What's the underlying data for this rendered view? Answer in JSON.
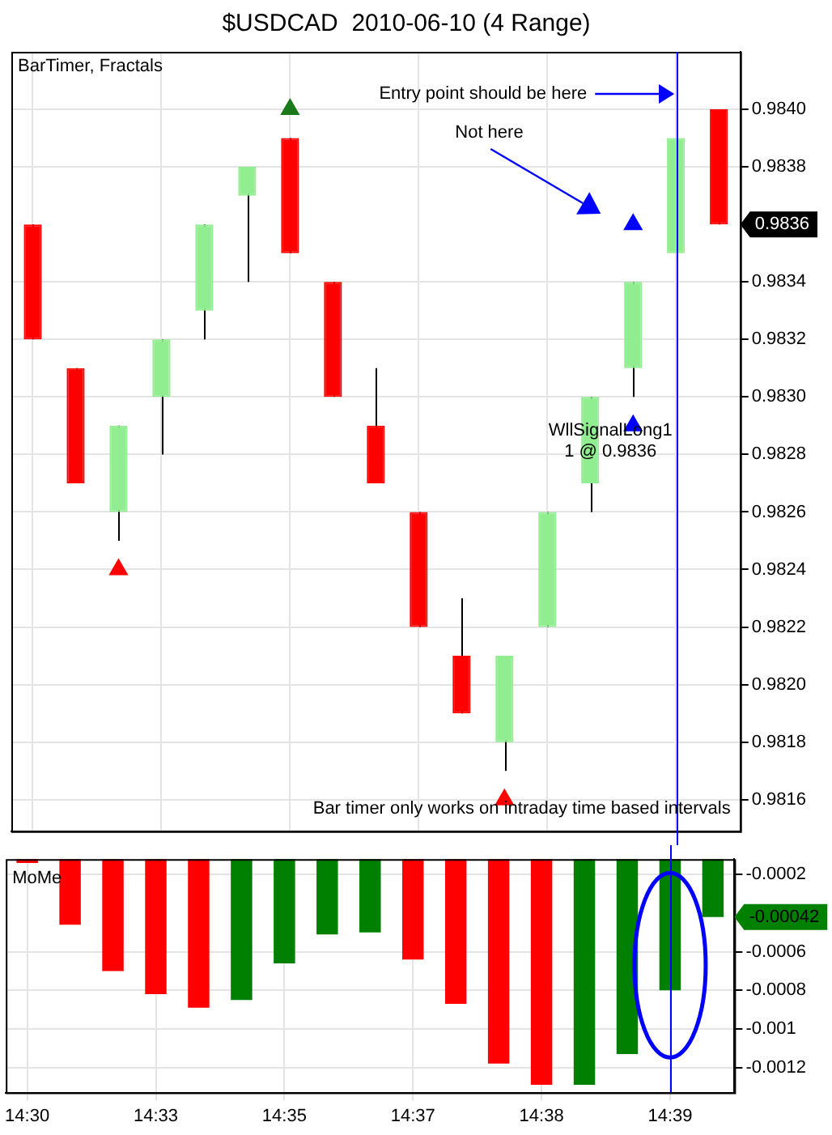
{
  "chart_data": [
    {
      "type": "candlestick",
      "title": "$USDCAD  2010-06-10 (4 Range)",
      "tick_labels": "y",
      "grid": true,
      "legend": false,
      "categories": [
        "14:30",
        null,
        null,
        "14:33",
        null,
        null,
        "14:35",
        null,
        null,
        "14:37",
        null,
        null,
        "14:38",
        null,
        null,
        "14:39",
        null
      ],
      "ohlc": [
        [
          0.9836,
          0.9836,
          0.9832,
          0.9832
        ],
        [
          0.9831,
          0.9831,
          0.9827,
          0.9827
        ],
        [
          0.9826,
          0.9829,
          0.9825,
          0.9829
        ],
        [
          0.983,
          0.9832,
          0.9828,
          0.9832
        ],
        [
          0.9833,
          0.9836,
          0.9832,
          0.9836
        ],
        [
          0.9837,
          0.9838,
          0.9834,
          0.9838
        ],
        [
          0.9839,
          0.9839,
          0.9835,
          0.9835
        ],
        [
          0.9834,
          0.9834,
          0.983,
          0.983
        ],
        [
          0.9829,
          0.9831,
          0.9827,
          0.9827
        ],
        [
          0.9826,
          0.9826,
          0.9822,
          0.9822
        ],
        [
          0.9821,
          0.9823,
          0.9819,
          0.9819
        ],
        [
          0.9818,
          0.9821,
          0.9817,
          0.9821
        ],
        [
          0.9822,
          0.9826,
          0.9822,
          0.9826
        ],
        [
          0.9827,
          0.983,
          0.9826,
          0.983
        ],
        [
          0.9831,
          0.9834,
          0.983,
          0.9834
        ],
        [
          0.9835,
          0.9839,
          0.9835,
          0.9839
        ],
        [
          0.984,
          0.984,
          0.9836,
          0.9836
        ]
      ],
      "colors": [
        "#ff0000",
        "#ff0000",
        "#90ee90",
        "#90ee90",
        "#90ee90",
        "#90ee90",
        "#ff0000",
        "#ff0000",
        "#ff0000",
        "#ff0000",
        "#ff0000",
        "#90ee90",
        "#90ee90",
        "#90ee90",
        "#90ee90",
        "#90ee90",
        "#ff0000"
      ],
      "series": [
        {
          "type": "scatter",
          "color": "#1a7a1a",
          "marker": "triangle",
          "values": [
            null,
            null,
            null,
            null,
            null,
            null,
            0.984,
            null,
            null,
            null,
            null,
            null,
            null,
            null,
            null,
            null,
            null
          ]
        },
        {
          "type": "scatter",
          "color": "#ff0000",
          "marker": "triangle",
          "values": [
            null,
            null,
            0.9824,
            null,
            null,
            null,
            null,
            null,
            null,
            null,
            null,
            0.9816,
            null,
            null,
            null,
            null,
            null
          ]
        },
        {
          "type": "scatter",
          "color": "#0000ff",
          "marker": "triangle",
          "values": [
            null,
            null,
            null,
            null,
            null,
            null,
            null,
            null,
            null,
            null,
            null,
            null,
            null,
            null,
            0.9829,
            null,
            null
          ]
        },
        {
          "type": "scatter",
          "color": "#0000ff",
          "marker": "triangle",
          "values": [
            null,
            null,
            null,
            null,
            null,
            null,
            null,
            null,
            null,
            null,
            null,
            null,
            null,
            null,
            0.9836,
            null,
            null
          ]
        }
      ],
      "ylim": [
        0.98149,
        0.9842
      ],
      "yticks": [
        0.9816,
        0.9818,
        {
          "value": 0.982,
          "label": "0.9820"
        },
        0.9822,
        0.9824,
        0.9826,
        0.9828,
        {
          "value": 0.983,
          "label": "0.9830"
        },
        0.9832,
        0.9834,
        0.9838,
        {
          "value": 0.984,
          "label": "0.9840"
        }
      ],
      "ref_lines": [
        {
          "axis": "x",
          "value": "14:39",
          "color": "#0000ff"
        }
      ],
      "annotations": [
        "BarTimer, Fractals",
        "Entry point should be here",
        "Not here",
        "WllSignalLong1\n1 @ 0.9836",
        "Bar timer only works on intraday time based intervals",
        "0.9836"
      ]
    },
    {
      "type": "bar",
      "grid": true,
      "legend": false,
      "categories": [
        "14:30",
        null,
        null,
        "14:33",
        null,
        null,
        "14:35",
        null,
        null,
        "14:37",
        null,
        null,
        "14:38",
        null,
        null,
        "14:39",
        null
      ],
      "values": [
        -0.00014,
        -0.00046,
        -0.0007,
        -0.00082,
        -0.00089,
        -0.00085,
        -0.00066,
        -0.00051,
        -0.0005,
        -0.00064,
        -0.00087,
        -0.00118,
        -0.00129,
        -0.00129,
        -0.00113,
        -0.0008,
        -0.00042
      ],
      "colors": [
        "#ff0000",
        "#ff0000",
        "#ff0000",
        "#ff0000",
        "#ff0000",
        "#008000",
        "#008000",
        "#008000",
        "#008000",
        "#ff0000",
        "#ff0000",
        "#ff0000",
        "#ff0000",
        "#008000",
        "#008000",
        "#008000",
        "#008000"
      ],
      "ylim": [
        -0.00133,
        -0.00012
      ],
      "yticks": [
        -0.0012,
        -0.001,
        -0.0008,
        -0.0006,
        -0.0002
      ],
      "ref_lines": [
        {
          "axis": "x",
          "value": "14:39",
          "color": "#0000ff"
        }
      ],
      "annotations": [
        "MoMe",
        "-0.00042"
      ]
    }
  ]
}
